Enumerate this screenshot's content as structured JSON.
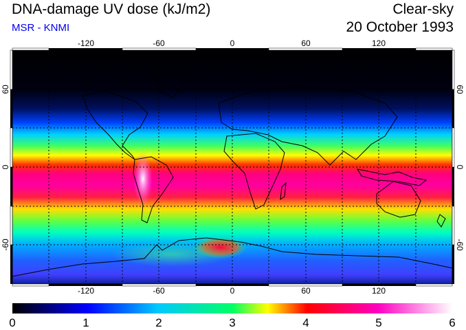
{
  "header": {
    "title": "DNA-damage UV dose (kJ/m2)",
    "subtitle": "MSR - KNMI",
    "condition": "Clear-sky",
    "date": "20 October 1993"
  },
  "map": {
    "projection": "equirectangular",
    "lon_ticks": [
      "-120",
      "-60",
      "0",
      "60",
      "120"
    ],
    "lat_ticks_left": [
      "60",
      "0",
      "-60"
    ],
    "lat_ticks_right": [
      "60",
      "0",
      "-60"
    ],
    "gridlines": "dashed every 30 degrees",
    "colors": {
      "background": "#000000",
      "coastline": "#000000",
      "grid": "#000000"
    }
  },
  "colorbar": {
    "labels": [
      "0",
      "1",
      "2",
      "3",
      "4",
      "5",
      "6"
    ],
    "range": [
      0,
      6
    ],
    "stops": [
      "#000000",
      "#0000ff",
      "#00c8ff",
      "#00ff66",
      "#ffff00",
      "#ff0000",
      "#ff00c0",
      "#ffffff"
    ]
  }
}
